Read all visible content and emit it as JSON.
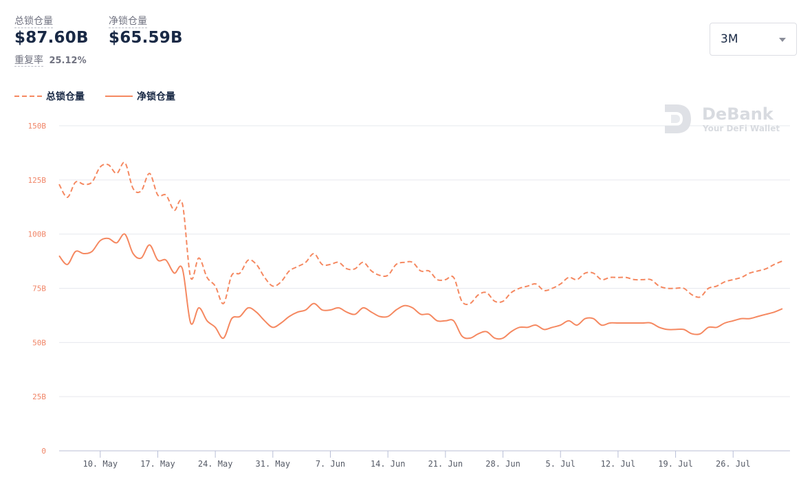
{
  "summary": {
    "tvl_label": "总锁仓量",
    "tvl_value": "$87.60B",
    "net_tvl_label": "净锁仓量",
    "net_tvl_value": "$65.59B",
    "repeat_label": "重复率",
    "repeat_value": "25.12%"
  },
  "range_select": {
    "selected": "3M"
  },
  "legend": {
    "tvl_label": "总锁仓量",
    "net_tvl_label": "净锁仓量"
  },
  "watermark": {
    "title": "DeBank",
    "subtitle": "Your DeFi Wallet"
  },
  "colors": {
    "series": "#f58860",
    "axis": "#b8bed6",
    "grid": "#e6e8ee",
    "text": "#192945"
  },
  "chart_data": {
    "type": "line",
    "title": "",
    "xlabel": "",
    "ylabel": "",
    "ylim": [
      0,
      150
    ],
    "y_ticks": [
      {
        "value": 0,
        "label": "0"
      },
      {
        "value": 25,
        "label": "25B"
      },
      {
        "value": 50,
        "label": "50B"
      },
      {
        "value": 75,
        "label": "75B"
      },
      {
        "value": 100,
        "label": "100B"
      },
      {
        "value": 125,
        "label": "125B"
      },
      {
        "value": 150,
        "label": "150B"
      }
    ],
    "x": [
      "05-05",
      "05-06",
      "05-07",
      "05-08",
      "05-09",
      "05-10",
      "05-11",
      "05-12",
      "05-13",
      "05-14",
      "05-15",
      "05-16",
      "05-17",
      "05-18",
      "05-19",
      "05-20",
      "05-21",
      "05-22",
      "05-23",
      "05-24",
      "05-25",
      "05-26",
      "05-27",
      "05-28",
      "05-29",
      "05-30",
      "05-31",
      "06-01",
      "06-02",
      "06-03",
      "06-04",
      "06-05",
      "06-06",
      "06-07",
      "06-08",
      "06-09",
      "06-10",
      "06-11",
      "06-12",
      "06-13",
      "06-14",
      "06-15",
      "06-16",
      "06-17",
      "06-18",
      "06-19",
      "06-20",
      "06-21",
      "06-22",
      "06-23",
      "06-24",
      "06-25",
      "06-26",
      "06-27",
      "06-28",
      "06-29",
      "06-30",
      "07-01",
      "07-02",
      "07-03",
      "07-04",
      "07-05",
      "07-06",
      "07-07",
      "07-08",
      "07-09",
      "07-10",
      "07-11",
      "07-12",
      "07-13",
      "07-14",
      "07-15",
      "07-16",
      "07-17",
      "07-18",
      "07-19",
      "07-20",
      "07-21",
      "07-22",
      "07-23",
      "07-24",
      "07-25",
      "07-26",
      "07-27",
      "07-28",
      "07-29",
      "07-30",
      "07-31",
      "08-01"
    ],
    "x_ticks": [
      {
        "at": "05-10",
        "label": "10. May"
      },
      {
        "at": "05-17",
        "label": "17. May"
      },
      {
        "at": "05-24",
        "label": "24. May"
      },
      {
        "at": "05-31",
        "label": "31. May"
      },
      {
        "at": "06-07",
        "label": "7. Jun"
      },
      {
        "at": "06-14",
        "label": "14. Jun"
      },
      {
        "at": "06-21",
        "label": "21. Jun"
      },
      {
        "at": "06-28",
        "label": "28. Jun"
      },
      {
        "at": "07-05",
        "label": "5. Jul"
      },
      {
        "at": "07-12",
        "label": "12. Jul"
      },
      {
        "at": "07-19",
        "label": "19. Jul"
      },
      {
        "at": "07-26",
        "label": "26. Jul"
      }
    ],
    "series": [
      {
        "name": "总锁仓量",
        "style": "dashed",
        "values": [
          123,
          117,
          124,
          123,
          124,
          131,
          132,
          128,
          133,
          121,
          120,
          128,
          118,
          118,
          111,
          114,
          80,
          89,
          80,
          76,
          68,
          81,
          82,
          88,
          86,
          80,
          76,
          78,
          83,
          85,
          87,
          91,
          86,
          86,
          87,
          84,
          84,
          87,
          83,
          81,
          81,
          86,
          87,
          87,
          83,
          83,
          79,
          79,
          80,
          69,
          68,
          72,
          73,
          69,
          69,
          73,
          75,
          76,
          77,
          74,
          75,
          77,
          80,
          79,
          82,
          82,
          79,
          80,
          80,
          80,
          79,
          79,
          79,
          76,
          75,
          75,
          75,
          72,
          71,
          75,
          76,
          78,
          79,
          80,
          82,
          83,
          84,
          86,
          87.6
        ]
      },
      {
        "name": "净锁仓量",
        "style": "solid",
        "values": [
          90,
          86,
          92,
          91,
          92,
          97,
          98,
          96,
          100,
          91,
          89,
          95,
          88,
          88,
          82,
          84,
          59,
          66,
          60,
          57,
          52,
          61,
          62,
          66,
          64,
          60,
          57,
          59,
          62,
          64,
          65,
          68,
          65,
          65,
          66,
          64,
          63,
          66,
          64,
          62,
          62,
          65,
          67,
          66,
          63,
          63,
          60,
          60,
          60,
          53,
          52,
          54,
          55,
          52,
          52,
          55,
          57,
          57,
          58,
          56,
          57,
          58,
          60,
          58,
          61,
          61,
          58,
          59,
          59,
          59,
          59,
          59,
          59,
          57,
          56,
          56,
          56,
          54,
          54,
          57,
          57,
          59,
          60,
          61,
          61,
          62,
          63,
          64,
          65.59
        ]
      }
    ]
  }
}
